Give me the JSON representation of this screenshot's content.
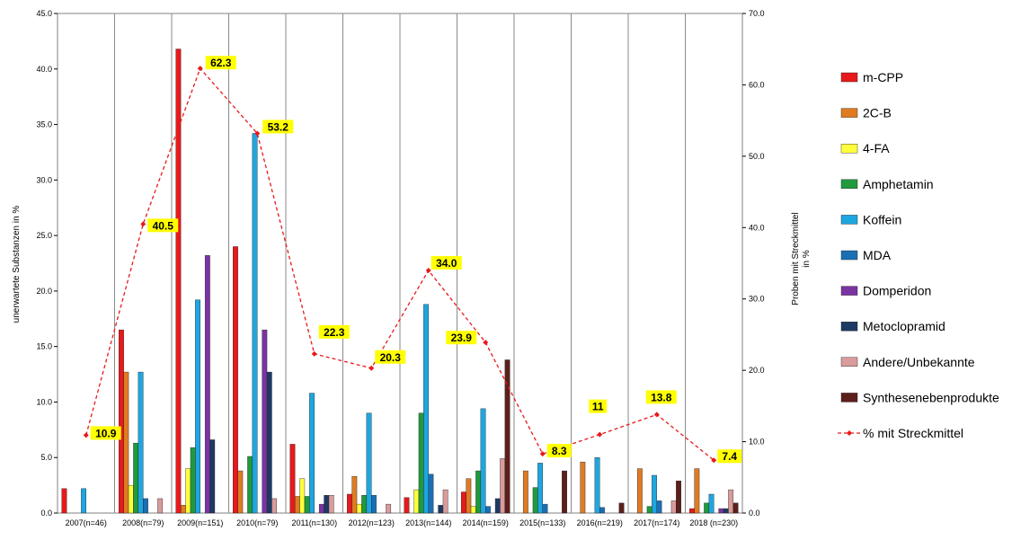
{
  "chart_data": {
    "type": "bar",
    "categories": [
      "2007(n=46)",
      "2008(n=79)",
      "2009(n=151)",
      "2010(n=79)",
      "2011(n=130)",
      "2012(n=123)",
      "2013(n=144)",
      "2014(n=159)",
      "2015(n=133)",
      "2016(n=219)",
      "2017(n=174)",
      "2018 (n=230)"
    ],
    "ylabel": "unerwartete Substanzen in %",
    "y2label_line1": "Proben mit Streckmittel",
    "y2label_line2": "in %",
    "ylim": [
      0,
      45
    ],
    "y2lim": [
      0,
      70
    ],
    "yticks": [
      "0.0",
      "5.0",
      "10.0",
      "15.0",
      "20.0",
      "25.0",
      "30.0",
      "35.0",
      "40.0",
      "45.0"
    ],
    "y2ticks": [
      "0.0",
      "10.0",
      "20.0",
      "30.0",
      "40.0",
      "50.0",
      "60.0",
      "70.0"
    ],
    "grid": "vertical category gridlines",
    "legend_position": "right",
    "series": [
      {
        "name": "m-CPP",
        "color": "#e8191b",
        "values": [
          2.2,
          16.5,
          41.8,
          24.0,
          6.2,
          1.7,
          1.4,
          1.9,
          0,
          0,
          0,
          0.4
        ]
      },
      {
        "name": "2C-B",
        "color": "#e07b22",
        "values": [
          0,
          12.7,
          0.7,
          3.8,
          1.5,
          3.3,
          0,
          3.1,
          3.8,
          4.6,
          4.0,
          4.0
        ]
      },
      {
        "name": "4-FA",
        "color": "#ffff3c",
        "values": [
          0,
          2.5,
          4.0,
          0,
          3.1,
          0.8,
          2.1,
          0.6,
          0,
          0,
          0,
          0
        ]
      },
      {
        "name": "Amphetamin",
        "color": "#1f9a3c",
        "values": [
          0,
          6.3,
          5.9,
          5.1,
          1.5,
          1.6,
          9.0,
          3.8,
          2.3,
          0,
          0.6,
          0.9
        ]
      },
      {
        "name": "Koffein",
        "color": "#1ea6e0",
        "values": [
          2.2,
          12.7,
          19.2,
          34.2,
          10.8,
          9.0,
          18.8,
          9.4,
          4.5,
          5.0,
          3.4,
          1.7
        ]
      },
      {
        "name": "MDA",
        "color": "#1a6fb5",
        "values": [
          0,
          1.3,
          0,
          0,
          0,
          1.6,
          3.5,
          0.6,
          0.8,
          0.5,
          1.1,
          0
        ]
      },
      {
        "name": "Domperidon",
        "color": "#7b33a3",
        "values": [
          0,
          0,
          23.2,
          16.5,
          0.8,
          0,
          0,
          0,
          0,
          0,
          0,
          0.4
        ]
      },
      {
        "name": "Metoclopramid",
        "color": "#1c3a64",
        "values": [
          0,
          0,
          6.6,
          12.7,
          1.6,
          0,
          0.7,
          1.3,
          0,
          0,
          0,
          0.4
        ]
      },
      {
        "name": "Andere/Unbekannte",
        "color": "#d99b9b",
        "values": [
          0,
          1.3,
          0,
          1.3,
          1.6,
          0.8,
          2.1,
          4.9,
          0,
          0,
          1.1,
          2.1
        ]
      },
      {
        "name": "Synthesenebenprodukte",
        "color": "#5c1f1b",
        "values": [
          0,
          0,
          0,
          0,
          0,
          0,
          0,
          13.8,
          3.8,
          0.9,
          2.9,
          0.9
        ]
      }
    ],
    "line": {
      "name": "% mit Streckmittel",
      "color": "#e8191b",
      "axis": "secondary",
      "values": [
        10.9,
        40.5,
        62.3,
        53.2,
        22.3,
        20.3,
        34.0,
        23.9,
        8.3,
        11,
        13.8,
        7.4
      ]
    },
    "data_labels": [
      "10.9",
      "40.5",
      "62.3",
      "53.2",
      "22.3",
      "20.3",
      "34.0",
      "23.9",
      "8.3",
      "11",
      "13.8",
      "7.4"
    ]
  }
}
